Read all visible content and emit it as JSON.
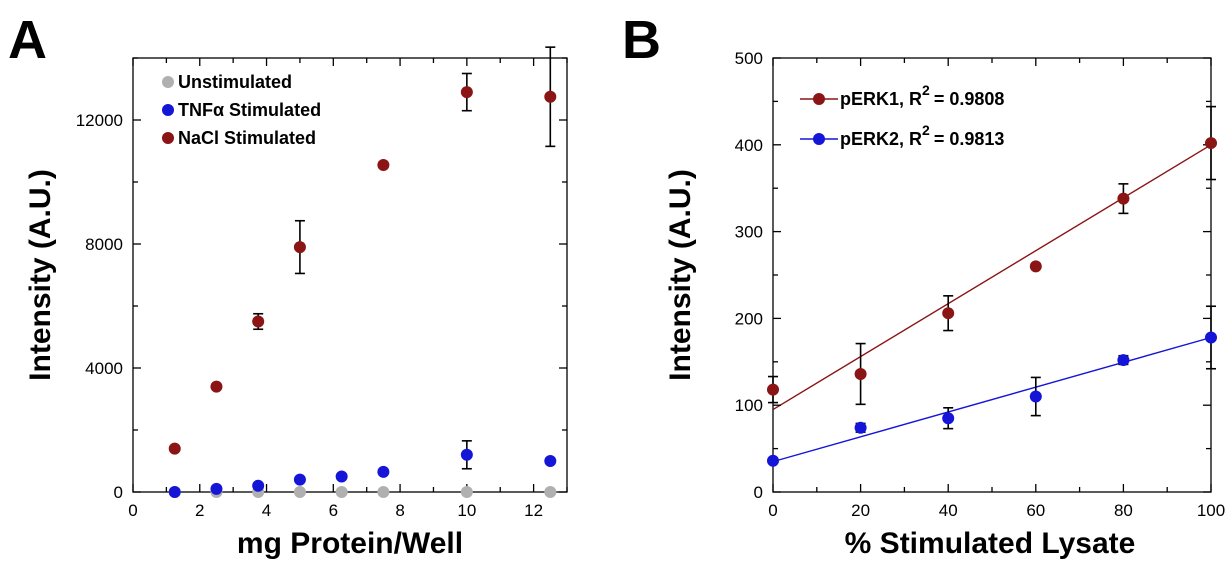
{
  "chart_data": [
    {
      "type": "scatter",
      "panel_label": "A",
      "xlabel": "mg Protein/Well",
      "ylabel": "Intensity (A.U.)",
      "xlim": [
        0,
        13
      ],
      "ylim": [
        0,
        14000
      ],
      "xticks": [
        0,
        2,
        4,
        6,
        8,
        10,
        12
      ],
      "yticks": [
        0,
        4000,
        8000,
        12000
      ],
      "legend_position": "top-left",
      "series": [
        {
          "name": "Unstimulated",
          "color": "#b0b0b0",
          "x": [
            1.25,
            2.5,
            3.75,
            5,
            6.25,
            7.5,
            10,
            12.5
          ],
          "y": [
            0,
            0,
            0,
            0,
            0,
            0,
            0,
            0
          ],
          "err": [
            0,
            0,
            0,
            0,
            0,
            0,
            0,
            0
          ]
        },
        {
          "name": "TNFα Stimulated",
          "color": "#1515d8",
          "x": [
            1.25,
            2.5,
            3.75,
            5,
            6.25,
            7.5,
            10,
            12.5
          ],
          "y": [
            0,
            100,
            200,
            400,
            500,
            650,
            1200,
            1000
          ],
          "err": [
            0,
            0,
            0,
            0,
            0,
            0,
            450,
            0
          ]
        },
        {
          "name": "NaCl Stimulated",
          "color": "#8b1414",
          "x": [
            1.25,
            2.5,
            3.75,
            5,
            6.25,
            7.5,
            10,
            12.5
          ],
          "y": [
            1400,
            3400,
            5500,
            7900,
            null,
            10550,
            12900,
            12750
          ],
          "err": [
            0,
            0,
            250,
            850,
            0,
            0,
            600,
            1600
          ]
        }
      ]
    },
    {
      "type": "scatter",
      "panel_label": "B",
      "xlabel": "% Stimulated Lysate",
      "ylabel": "Intensity (A.U.)",
      "xlim": [
        0,
        100
      ],
      "ylim": [
        0,
        500
      ],
      "xticks": [
        0,
        20,
        40,
        60,
        80,
        100
      ],
      "yticks": [
        0,
        100,
        200,
        300,
        400,
        500
      ],
      "legend_position": "top-left",
      "series": [
        {
          "name": "pERK1, R",
          "superscript": "2",
          "r2_text": "= 0.9808",
          "color": "#8b1414",
          "x": [
            0,
            20,
            40,
            60,
            80,
            100
          ],
          "y": [
            118,
            136,
            206,
            260,
            338,
            402
          ],
          "err": [
            15,
            35,
            20,
            0,
            17,
            42
          ],
          "fit": [
            [
              0,
              95
            ],
            [
              100,
              400
            ]
          ]
        },
        {
          "name": "pERK2, R",
          "superscript": "2",
          "r2_text": "= 0.9813",
          "color": "#1515d8",
          "x": [
            0,
            20,
            40,
            60,
            80,
            100
          ],
          "y": [
            36,
            74,
            85,
            110,
            152,
            178
          ],
          "err": [
            0,
            5,
            12,
            22,
            5,
            36
          ],
          "fit": [
            [
              0,
              35
            ],
            [
              100,
              178
            ]
          ]
        }
      ]
    }
  ]
}
